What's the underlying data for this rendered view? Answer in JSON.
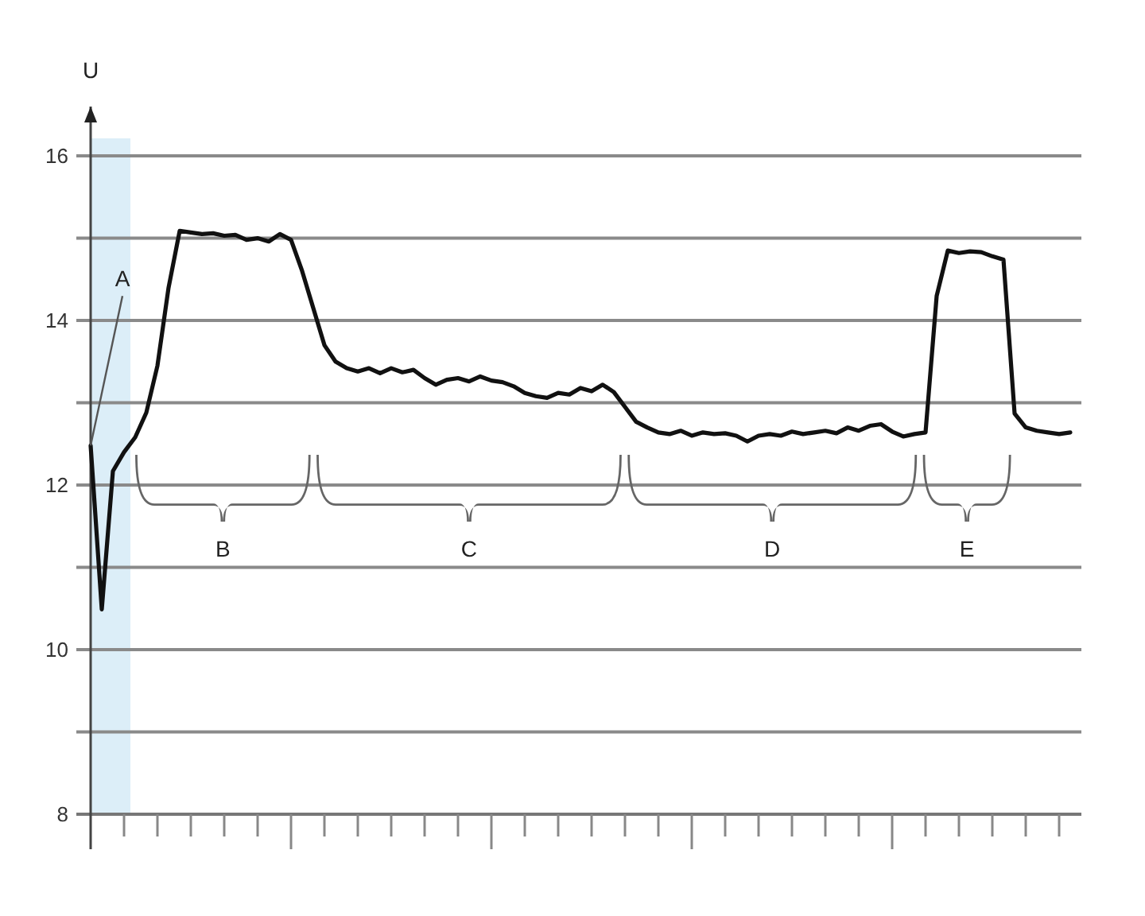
{
  "chart_data": {
    "type": "line",
    "ylabel": "U",
    "categories": [
      null,
      null,
      null,
      null,
      null,
      null,
      null,
      null,
      null,
      null,
      null,
      null,
      null,
      null,
      null,
      null,
      null,
      null,
      null,
      null,
      null,
      null,
      null,
      null,
      null,
      null,
      null,
      null,
      null,
      null,
      null,
      null,
      null,
      null,
      null,
      null,
      null,
      null,
      null,
      null,
      null,
      null,
      null,
      null,
      null,
      null,
      null,
      null,
      null,
      null,
      null,
      null,
      null,
      null,
      null,
      null,
      null,
      null,
      null,
      null,
      null,
      null,
      null,
      null,
      null,
      null,
      null,
      null,
      null,
      null,
      null,
      null,
      null,
      null,
      null,
      null,
      null,
      null,
      null,
      null,
      null,
      null,
      null,
      null,
      null,
      null,
      null,
      null,
      null
    ],
    "series": [
      {
        "color": "#111111",
        "values": [
          12.48,
          10.49,
          12.17,
          12.4,
          12.58,
          12.88,
          13.45,
          14.4,
          15.09,
          15.07,
          15.05,
          15.06,
          15.03,
          15.04,
          14.98,
          15.0,
          14.96,
          15.05,
          14.98,
          14.6,
          14.15,
          13.7,
          13.5,
          13.42,
          13.38,
          13.42,
          13.36,
          13.42,
          13.37,
          13.4,
          13.3,
          13.22,
          13.28,
          13.3,
          13.26,
          13.32,
          13.27,
          13.25,
          13.2,
          13.12,
          13.08,
          13.06,
          13.12,
          13.1,
          13.18,
          13.14,
          13.22,
          13.13,
          12.95,
          12.77,
          12.7,
          12.64,
          12.62,
          12.66,
          12.6,
          12.64,
          12.62,
          12.63,
          12.6,
          12.53,
          12.6,
          12.62,
          12.6,
          12.65,
          12.62,
          12.64,
          12.66,
          12.63,
          12.7,
          12.66,
          12.72,
          12.74,
          12.65,
          12.59,
          12.62,
          12.64,
          14.3,
          14.85,
          14.82,
          14.84,
          14.83,
          14.78,
          14.74,
          12.87,
          12.7,
          12.66,
          12.64,
          12.62,
          12.64
        ]
      }
    ],
    "ylim": [
      8,
      16.6
    ],
    "yticks": [
      8,
      {
        "value": 9,
        "label": null
      },
      10,
      {
        "value": 11,
        "label": null
      },
      12,
      {
        "value": 13,
        "label": null
      },
      14,
      {
        "value": 15,
        "label": null
      },
      16
    ],
    "grid": "y",
    "tick_labels": "y",
    "marker": "none",
    "line_style": "solid",
    "annotations": [
      "A",
      "B",
      "C",
      "D",
      "E"
    ]
  }
}
